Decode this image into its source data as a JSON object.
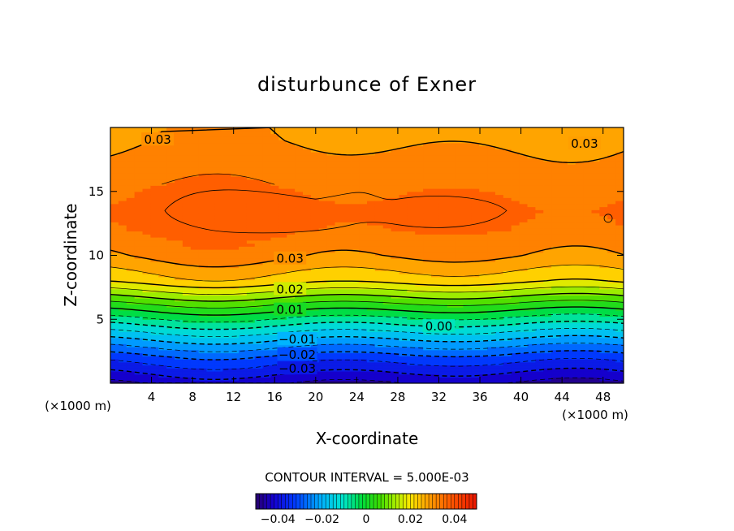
{
  "chart_data": {
    "type": "heatmap",
    "title": "disturbunce of Exner",
    "xlabel": "X-coordinate",
    "ylabel": "Z-coordinate",
    "x_unit": "(×1000 m)",
    "x_unit_right": "(×1000 m)",
    "xlim": [
      0,
      50
    ],
    "ylim": [
      0,
      20
    ],
    "x_ticks": [
      4,
      8,
      12,
      16,
      20,
      24,
      28,
      32,
      36,
      40,
      44,
      48
    ],
    "y_ticks": [
      5,
      10,
      15
    ],
    "contour_interval_text": "CONTOUR INTERVAL = 5.000E-03",
    "contour_interval": 0.005,
    "value_range": [
      -0.05,
      0.05
    ],
    "colorbar": {
      "range": [
        -0.05,
        0.05
      ],
      "ticks": [
        -0.04,
        -0.02,
        0,
        0.02,
        0.04
      ],
      "tick_labels": [
        "−0.04",
        "−0.02",
        "0",
        "0.02",
        "0.04"
      ]
    },
    "field_profile": {
      "z": [
        0,
        2,
        4,
        6,
        8,
        10,
        12,
        13.5,
        15,
        17,
        19,
        20
      ],
      "value": [
        -0.045,
        -0.032,
        -0.015,
        0.003,
        0.022,
        0.031,
        0.0355,
        0.0365,
        0.035,
        0.032,
        0.0295,
        0.029
      ]
    },
    "contour_labels": [
      {
        "text": "0.03",
        "x": 4.6,
        "z": 19.1
      },
      {
        "text": "0.03",
        "x": 46.2,
        "z": 18.8
      },
      {
        "text": "0.03",
        "x": 17.5,
        "z": 9.8
      },
      {
        "text": "0.02",
        "x": 17.5,
        "z": 7.4
      },
      {
        "text": "0.01",
        "x": 17.5,
        "z": 5.8
      },
      {
        "text": "0.00",
        "x": 32.0,
        "z": 4.5
      },
      {
        "text": "−0.01",
        "x": 18.2,
        "z": 3.5
      },
      {
        "text": "−0.02",
        "x": 18.2,
        "z": 2.3
      },
      {
        "text": "−0.03",
        "x": 18.2,
        "z": 1.2
      }
    ]
  }
}
